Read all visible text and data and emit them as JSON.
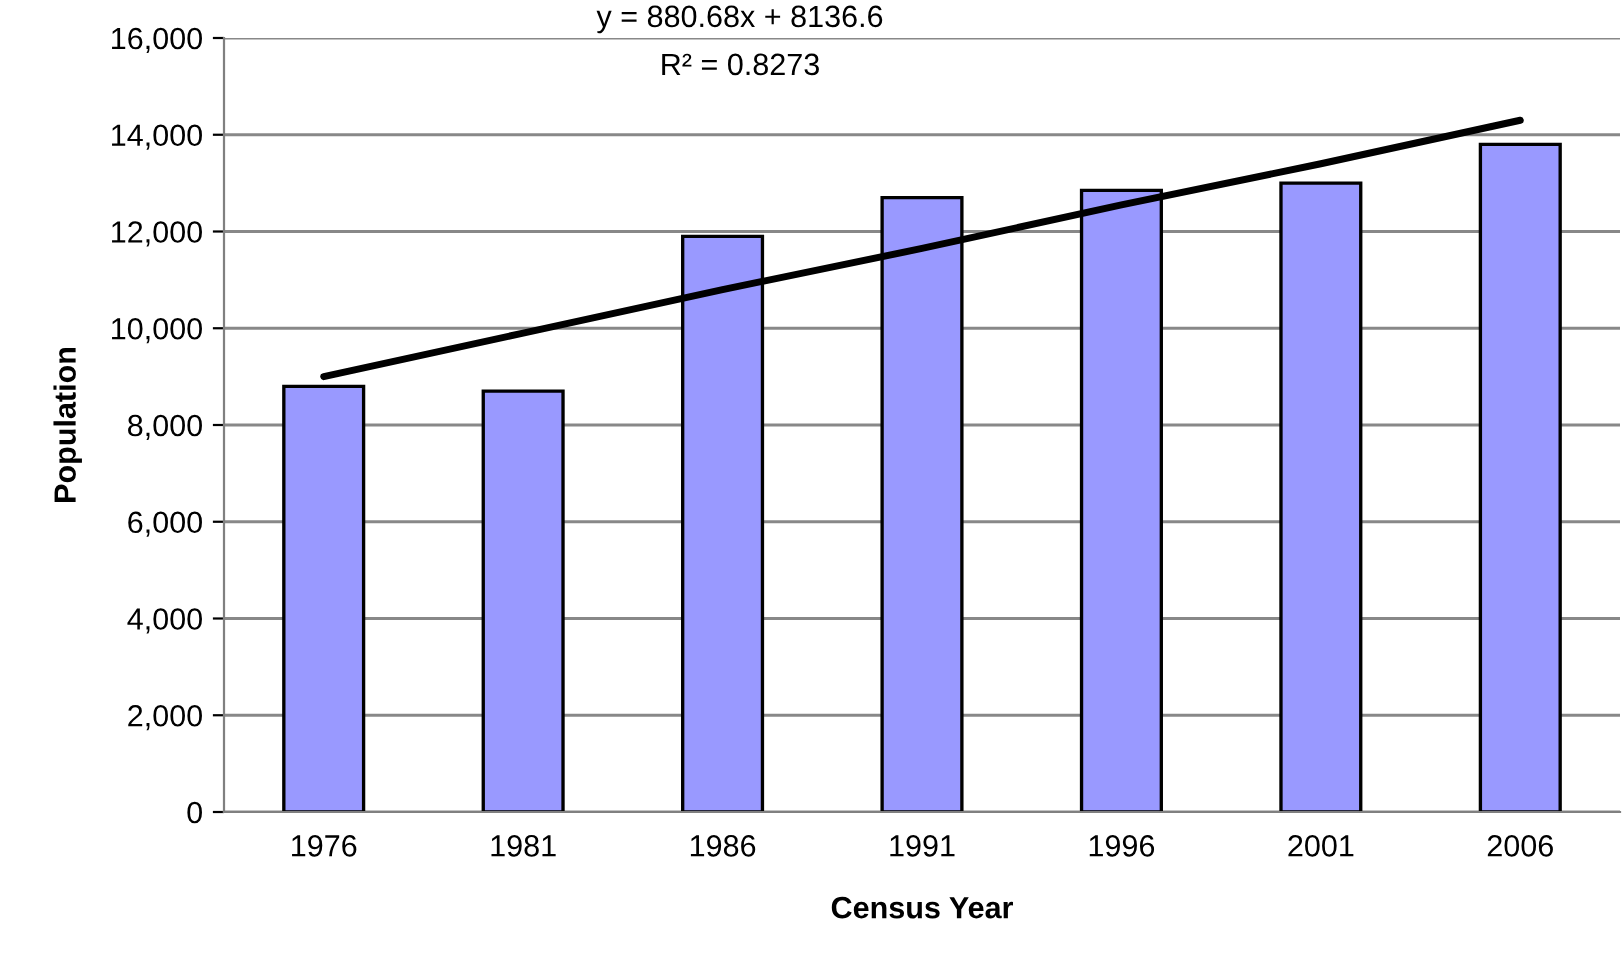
{
  "chart_data": {
    "type": "bar",
    "xlabel": "Census Year",
    "ylabel": "Population",
    "categories": [
      "1976",
      "1981",
      "1986",
      "1991",
      "1996",
      "2001",
      "2006"
    ],
    "series": [
      {
        "color": "#9999ff",
        "values": [
          8800,
          8700,
          11900,
          12700,
          12850,
          13000,
          13800
        ]
      },
      {
        "type": "line",
        "color": "#000000",
        "values": [
          9000,
          9900,
          10800,
          11650,
          12550,
          13400,
          14300
        ]
      }
    ],
    "annotations": [
      "y = 880.68x + 8136.6",
      "R² = 0.8273"
    ],
    "ylim": [
      0,
      16000
    ],
    "yticks": [
      {
        "value": 0,
        "label": "0"
      },
      {
        "value": 2000,
        "label": "2,000"
      },
      {
        "value": 4000,
        "label": "4,000"
      },
      {
        "value": 6000,
        "label": "6,000"
      },
      {
        "value": 8000,
        "label": "8,000"
      },
      {
        "value": 10000,
        "label": "10,000"
      },
      {
        "value": 12000,
        "label": "12,000"
      },
      {
        "value": 14000,
        "label": "14,000"
      },
      {
        "value": 16000,
        "label": "16,000"
      }
    ],
    "grid": "y"
  }
}
